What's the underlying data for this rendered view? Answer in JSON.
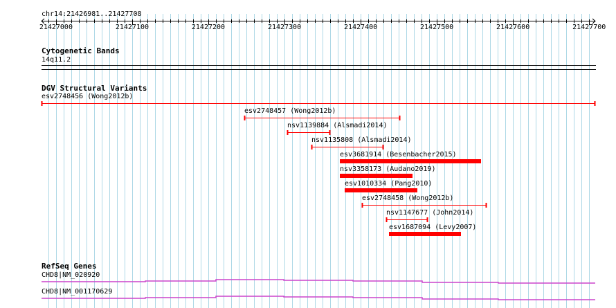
{
  "browser": {
    "region": "chr14:21426981..21427708",
    "ticks": [
      "21427000",
      "21427100",
      "21427200",
      "21427300",
      "21427400",
      "21427500",
      "21427600",
      "21427700"
    ],
    "tick_values": [
      21427000,
      21427100,
      21427200,
      21427300,
      21427400,
      21427500,
      21427600,
      21427700
    ],
    "view_start": 21426981,
    "view_end": 21427708,
    "colors": {
      "grid": "#add8e6",
      "variant": "#ff0000",
      "gene": "#cc44cc"
    }
  },
  "tracks": {
    "cytoband": {
      "title": "Cytogenetic Bands",
      "band": "14q11.2"
    },
    "dgv": {
      "title": "DGV Structural Variants",
      "items": [
        {
          "label": "esv2748456 (Wong2012b)",
          "start": 21426981,
          "end": 21427708,
          "style": "thin"
        },
        {
          "label": "esv2748457 (Wong2012b)",
          "start": 21427247,
          "end": 21427452,
          "style": "thin"
        },
        {
          "label": "nsv1139884 (Alsmadi2014)",
          "start": 21427304,
          "end": 21427360,
          "style": "thin"
        },
        {
          "label": "nsv1135808 (Alsmadi2014)",
          "start": 21427335,
          "end": 21427430,
          "style": "thin"
        },
        {
          "label": "esv3681914 (Besenbacher2015)",
          "start": 21427373,
          "end": 21427558,
          "style": "thick"
        },
        {
          "label": "nsv3358173 (Audano2019)",
          "start": 21427373,
          "end": 21427468,
          "style": "thick"
        },
        {
          "label": "esv1010334 (Pang2010)",
          "start": 21427379,
          "end": 21427474,
          "style": "thick"
        },
        {
          "label": "esv2748458 (Wong2012b)",
          "start": 21427402,
          "end": 21427565,
          "style": "thin"
        },
        {
          "label": "nsv1147677 (John2014)",
          "start": 21427434,
          "end": 21427488,
          "style": "thin"
        },
        {
          "label": "esv1687094 (Levy2007)",
          "start": 21427437,
          "end": 21427532,
          "style": "thick"
        }
      ]
    },
    "refseq": {
      "title": "RefSeq Genes",
      "genes": [
        {
          "label": "CHD8|NM_020920"
        },
        {
          "label": "CHD8|NM_001170629"
        }
      ]
    }
  }
}
